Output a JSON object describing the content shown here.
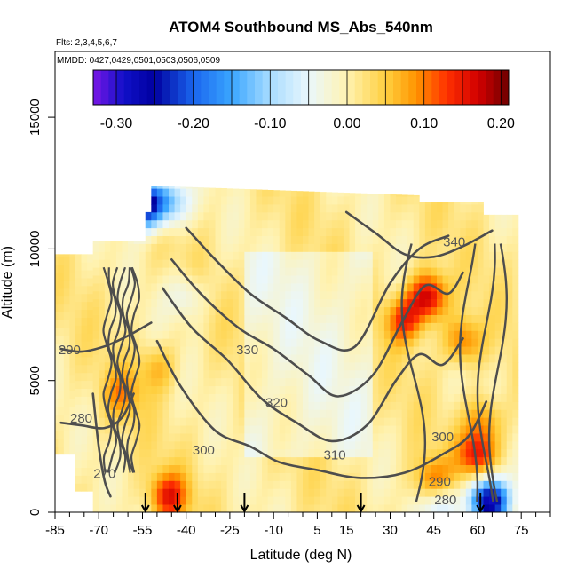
{
  "chart_data": {
    "type": "heatmap",
    "title": "ATOM4 Southbound MS_Abs_540nm",
    "flights_text": "Flts: 2,3,4,5,6,7",
    "dates_text": "MMDD: 0427,0429,0501,0503,0506,0509",
    "xlabel": "Latitude (deg N)",
    "ylabel": "Altitude (m)",
    "xlim": [
      -85,
      85
    ],
    "ylim": [
      0,
      17500
    ],
    "x_tick_labels": [
      "-85",
      "-70",
      "-55",
      "-40",
      "-25",
      "-10",
      "5",
      "15",
      "30",
      "45",
      "60",
      "75"
    ],
    "x_minor_ticks": [
      -80,
      -75,
      -65,
      -60,
      -50,
      -45,
      -35,
      -30,
      -20,
      -15,
      -5,
      0,
      10,
      20,
      25,
      35,
      40,
      50,
      55,
      65,
      70,
      80,
      85
    ],
    "y_ticks": [
      0,
      5000,
      10000,
      15000
    ],
    "colorbar": {
      "range": [
        -0.33,
        0.21
      ],
      "tick_labels": [
        "-0.30",
        "-0.20",
        "-0.10",
        "0.00",
        "0.10",
        "0.20"
      ],
      "tick_values": [
        -0.3,
        -0.2,
        -0.1,
        0.0,
        0.1,
        0.2
      ]
    },
    "color_stops": [
      {
        "v": -0.33,
        "c": "#7a17e6"
      },
      {
        "v": -0.29,
        "c": "#1010c8"
      },
      {
        "v": -0.25,
        "c": "#0000a0"
      },
      {
        "v": -0.2,
        "c": "#1a66ee"
      },
      {
        "v": -0.15,
        "c": "#3aa6ff"
      },
      {
        "v": -0.1,
        "c": "#a8dcff"
      },
      {
        "v": -0.05,
        "c": "#eaf7fc"
      },
      {
        "v": 0.0,
        "c": "#fff2b0"
      },
      {
        "v": 0.05,
        "c": "#ffd040"
      },
      {
        "v": 0.09,
        "c": "#ff9500"
      },
      {
        "v": 0.13,
        "c": "#ff3000"
      },
      {
        "v": 0.17,
        "c": "#d20000"
      },
      {
        "v": 0.21,
        "c": "#6e0000"
      }
    ],
    "flight_markers_lat": [
      -54,
      -43,
      -20,
      20,
      61
    ],
    "field_bounds": {
      "lat": [
        -86,
        74
      ],
      "alt": [
        0,
        12400
      ]
    },
    "hotspots": [
      {
        "lat": 43,
        "alt": 8200,
        "v": 0.17
      },
      {
        "lat": 35,
        "alt": 7300,
        "v": 0.12
      },
      {
        "lat": 55,
        "alt": 6500,
        "v": 0.1
      },
      {
        "lat": 62,
        "alt": 3500,
        "v": 0.08
      },
      {
        "lat": 60,
        "alt": 2200,
        "v": 0.14
      },
      {
        "lat": -46,
        "alt": 600,
        "v": 0.13
      },
      {
        "lat": -62,
        "alt": 4500,
        "v": 0.07
      },
      {
        "lat": -50,
        "alt": 5500,
        "v": 0.06
      },
      {
        "lat": -54,
        "alt": 11700,
        "v": -0.28
      },
      {
        "lat": -45,
        "alt": 11800,
        "v": -0.12
      },
      {
        "lat": -40,
        "alt": 8200,
        "v": -0.06
      },
      {
        "lat": 64,
        "alt": 400,
        "v": -0.32
      },
      {
        "lat": 47,
        "alt": 400,
        "v": -0.12
      },
      {
        "lat": 45,
        "alt": 1100,
        "v": 0.12
      }
    ],
    "contour_series": [
      {
        "name": "270",
        "lat": [
          -72,
          -70,
          -68,
          -66
        ],
        "alt": [
          4500,
          2500,
          1200,
          600
        ]
      },
      {
        "name": "280",
        "lat": [
          -83,
          -76,
          -68,
          -62,
          -58
        ],
        "alt": [
          3400,
          3300,
          3200,
          3600,
          4500
        ]
      },
      {
        "name": "290",
        "lat": [
          -83,
          -76,
          -68,
          -60,
          -52
        ],
        "alt": [
          6200,
          6100,
          6300,
          6700,
          7200
        ]
      },
      {
        "name": "300",
        "lat": [
          -50,
          -42,
          -30,
          -18,
          -8,
          5,
          20,
          35,
          48,
          57,
          63
        ],
        "alt": [
          6500,
          4800,
          3100,
          2500,
          1900,
          1600,
          1300,
          1500,
          2200,
          2900,
          4200
        ]
      },
      {
        "name": "310",
        "lat": [
          -48,
          -38,
          -26,
          -14,
          -2,
          10,
          22,
          32,
          40,
          48,
          55
        ],
        "alt": [
          8500,
          7000,
          5800,
          4300,
          3400,
          2700,
          3300,
          5000,
          6000,
          5600,
          6600
        ]
      },
      {
        "name": "320",
        "lat": [
          -45,
          -35,
          -22,
          -10,
          2,
          12,
          24,
          34,
          42,
          50,
          55
        ],
        "alt": [
          9600,
          8300,
          7000,
          6200,
          5200,
          4400,
          5200,
          7200,
          8600,
          8300,
          9100
        ]
      },
      {
        "name": "330",
        "lat": [
          -40,
          -30,
          -18,
          -6,
          6,
          18,
          30,
          40,
          50
        ],
        "alt": [
          10800,
          9600,
          8300,
          7400,
          6500,
          6300,
          8700,
          10000,
          10500
        ]
      },
      {
        "name": "340",
        "lat": [
          15,
          25,
          35,
          45,
          55,
          65
        ],
        "alt": [
          11400,
          10600,
          9800,
          9700,
          10100,
          10700
        ]
      }
    ],
    "contour_labels": [
      {
        "text": "270",
        "lat": -68,
        "alt": 1300
      },
      {
        "text": "280",
        "lat": -76,
        "alt": 3400
      },
      {
        "text": "290",
        "lat": -80,
        "alt": 6000
      },
      {
        "text": "300",
        "lat": -34,
        "alt": 2200
      },
      {
        "text": "300",
        "lat": 48,
        "alt": 2700
      },
      {
        "text": "310",
        "lat": 11,
        "alt": 2000
      },
      {
        "text": "320",
        "lat": -9,
        "alt": 4000
      },
      {
        "text": "330",
        "lat": -19,
        "alt": 6000
      },
      {
        "text": "340",
        "lat": 52,
        "alt": 10100
      },
      {
        "text": "290",
        "lat": 47,
        "alt": 1000
      },
      {
        "text": "280",
        "lat": 49,
        "alt": 300
      }
    ]
  }
}
